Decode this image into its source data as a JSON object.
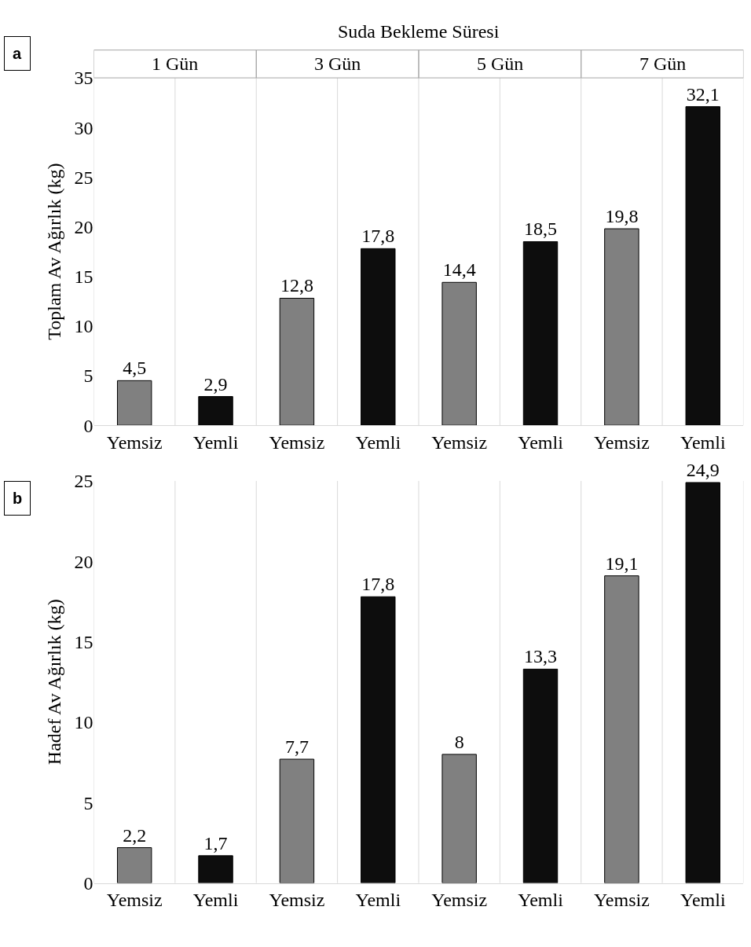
{
  "chart_data": [
    {
      "type": "bar",
      "title": "Suda Bekleme Süresi",
      "ylabel": "Toplam Av Ağırlık (kg)",
      "categories": [
        "Yemsiz",
        "Yemli",
        "Yemsiz",
        "Yemli",
        "Yemsiz",
        "Yemli",
        "Yemsiz",
        "Yemli"
      ],
      "values": [
        4.5,
        2.9,
        12.8,
        17.8,
        14.4,
        18.5,
        19.8,
        32.1
      ],
      "colors": [
        "#808080",
        "#0d0d0d",
        "#808080",
        "#0d0d0d",
        "#808080",
        "#0d0d0d",
        "#808080",
        "#0d0d0d"
      ],
      "ylim": [
        0,
        35
      ],
      "yticks": [
        0,
        5,
        10,
        15,
        20,
        25,
        30,
        35
      ],
      "grid": "x",
      "value_labels": [
        "4,5",
        "2,9",
        "12,8",
        "17,8",
        "14,4",
        "18,5",
        "19,8",
        "32,1"
      ],
      "annotations": [
        "a",
        "1 Gün",
        "3 Gün",
        "5 Gün",
        "7 Gün"
      ]
    },
    {
      "type": "bar",
      "ylabel": "Hadef Av Ağırlık (kg)",
      "categories": [
        "Yemsiz",
        "Yemli",
        "Yemsiz",
        "Yemli",
        "Yemsiz",
        "Yemli",
        "Yemsiz",
        "Yemli"
      ],
      "values": [
        2.2,
        1.7,
        7.7,
        17.8,
        8,
        13.3,
        19.1,
        24.9
      ],
      "colors": [
        "#808080",
        "#0d0d0d",
        "#808080",
        "#0d0d0d",
        "#808080",
        "#0d0d0d",
        "#808080",
        "#0d0d0d"
      ],
      "ylim": [
        0,
        25
      ],
      "yticks": [
        0,
        5,
        10,
        15,
        20,
        25
      ],
      "grid": "x",
      "value_labels": [
        "2,2",
        "1,7",
        "7,7",
        "17,8",
        "8",
        "13,3",
        "19,1",
        "24,9"
      ],
      "annotations": [
        "b"
      ]
    }
  ]
}
